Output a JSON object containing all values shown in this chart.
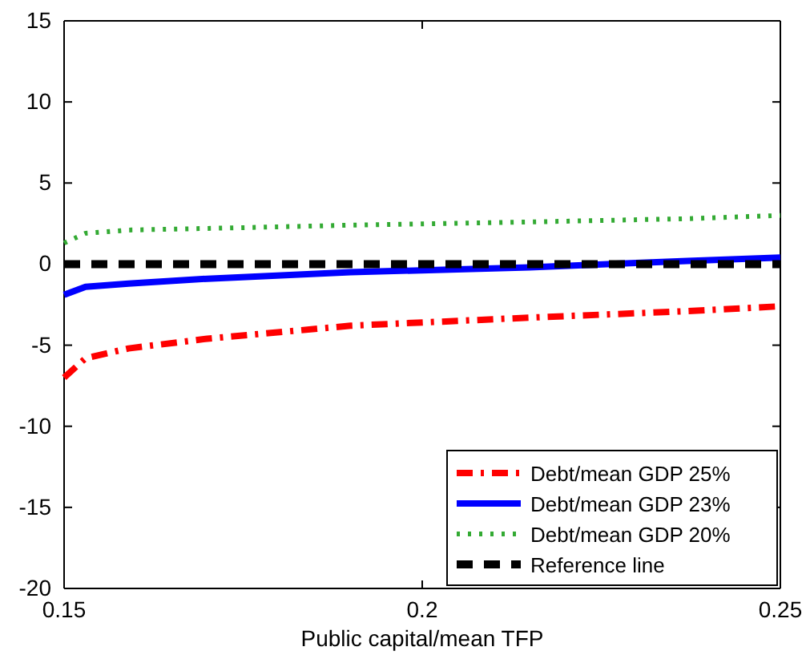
{
  "chart_data": {
    "type": "line",
    "xlabel": "Public capital/mean TFP",
    "x": [
      0.15,
      0.153,
      0.159,
      0.17,
      0.19,
      0.215,
      0.237,
      0.25
    ],
    "series": [
      {
        "name": "Debt/mean GDP 25%",
        "color": "#ff0000",
        "line_style": "dashdot",
        "values": [
          -7.0,
          -5.8,
          -5.2,
          -4.6,
          -3.8,
          -3.3,
          -2.9,
          -2.6
        ]
      },
      {
        "name": "Debt/mean GDP 23%",
        "color": "#0000ff",
        "line_style": "solid",
        "values": [
          -1.9,
          -1.4,
          -1.2,
          -0.9,
          -0.5,
          -0.2,
          0.2,
          0.4
        ]
      },
      {
        "name": "Debt/mean GDP 20%",
        "color": "#33aa33",
        "line_style": "dotted",
        "values": [
          1.3,
          1.9,
          2.1,
          2.2,
          2.4,
          2.6,
          2.8,
          3.0
        ]
      },
      {
        "name": "Reference line",
        "color": "#000000",
        "line_style": "dashed",
        "values": [
          0,
          0,
          0,
          0,
          0,
          0,
          0,
          0
        ]
      }
    ],
    "xlim": [
      0.15,
      0.25
    ],
    "xticks": [
      0.15,
      0.2,
      0.25
    ],
    "ylim": [
      -20,
      15
    ],
    "yticks": [
      -20,
      -15,
      -10,
      -5,
      0,
      5,
      10,
      15
    ],
    "grid": false,
    "legend": "bottom right",
    "marker": "none"
  }
}
